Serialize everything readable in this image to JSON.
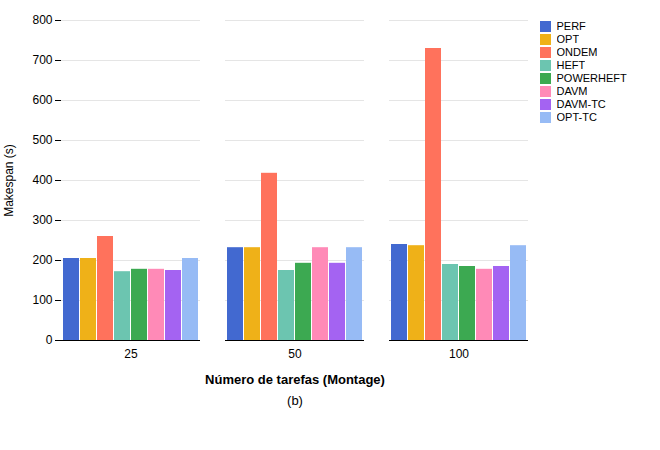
{
  "chart_data": {
    "type": "bar",
    "subtitle": "(b)",
    "xlabel": "Número de tarefas (Montage)",
    "ylabel": "Makespan (s)",
    "categories": [
      "25",
      "50",
      "100"
    ],
    "series": [
      {
        "name": "PERF",
        "values": [
          205,
          232,
          240
        ]
      },
      {
        "name": "OPT",
        "values": [
          205,
          232,
          237
        ]
      },
      {
        "name": "ONDEM",
        "values": [
          260,
          418,
          730
        ]
      },
      {
        "name": "HEFT",
        "values": [
          172,
          175,
          190
        ]
      },
      {
        "name": "POWERHEFT",
        "values": [
          178,
          193,
          185
        ]
      },
      {
        "name": "DAVM",
        "values": [
          178,
          232,
          178
        ]
      },
      {
        "name": "DAVM-TC",
        "values": [
          175,
          193,
          185
        ]
      },
      {
        "name": "OPT-TC",
        "values": [
          205,
          232,
          237
        ]
      }
    ],
    "ylim": [
      0,
      800
    ],
    "yticks": [
      0,
      100,
      200,
      300,
      400,
      500,
      600,
      700,
      800
    ],
    "grid": true,
    "legend": "right"
  }
}
